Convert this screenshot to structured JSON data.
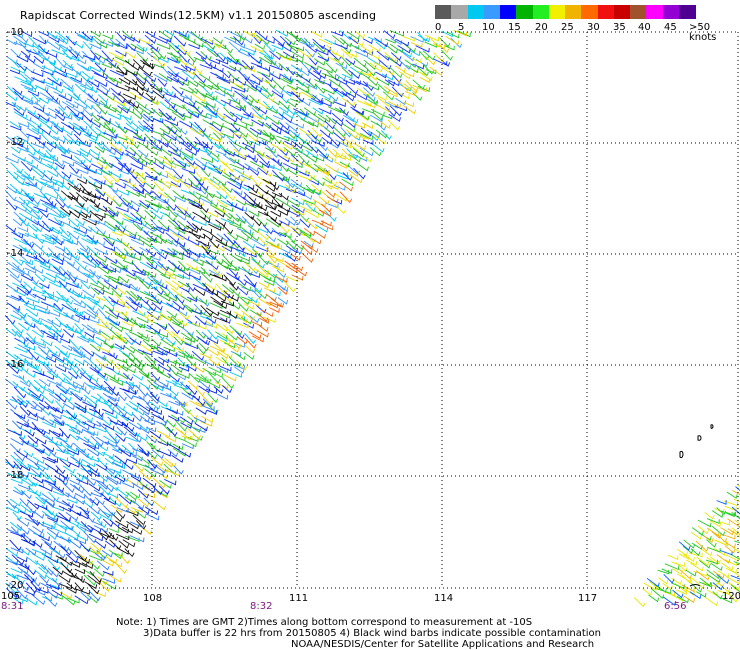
{
  "title": "Rapidscat Corrected Winds(12.5KM) v1.1 20150805 ascending",
  "legend": {
    "labels": [
      "0",
      "5",
      "10",
      "15",
      "20",
      "25",
      "30",
      "35",
      "40",
      "45",
      ">50 knots"
    ],
    "colors": [
      "#5a5a5a",
      "#a8a8a8",
      "#00c8f0",
      "#3a9bff",
      "#0000ff",
      "#00b400",
      "#22ee22",
      "#f0f000",
      "#f0b400",
      "#ff6a00",
      "#f01010",
      "#c80000",
      "#a0522d",
      "#ff00ff",
      "#9400d3",
      "#500090"
    ]
  },
  "axes": {
    "lat_labels": [
      "-10",
      "-12",
      "-14",
      "-16",
      "-18",
      "-20"
    ],
    "lon_labels": [
      "105",
      "108",
      "111",
      "114",
      "117",
      "120"
    ]
  },
  "pass_times": [
    "8:31",
    "8:32",
    "6:56"
  ],
  "notes": [
    "Note: 1) Times are GMT 2)Times along bottom correspond to measurement at -10S",
    "3)Data buffer is 22 hrs from 20150805 4) Black wind barbs indicate possible contamination",
    "NOAA/NESDIS/Center for Satellite Applications and Research"
  ],
  "icons": {
    "map": "wind-barb-map",
    "island": "island-outline-icon"
  }
}
